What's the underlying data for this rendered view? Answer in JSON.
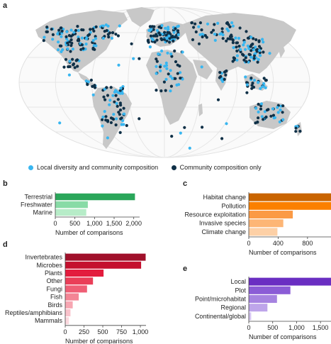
{
  "panels": {
    "a": "a",
    "b": "b",
    "c": "c",
    "d": "d",
    "e": "e"
  },
  "legend": {
    "local": {
      "label": "Local diversity and community composition",
      "color": "#38b6f0"
    },
    "community": {
      "label": "Community composition only",
      "color": "#0f3047"
    }
  },
  "map": {
    "land_color": "#c8c8c8",
    "graticule_color": "#e6e6e6"
  },
  "chart_data": [
    {
      "id": "b",
      "type": "bar",
      "orientation": "horizontal",
      "categories": [
        "Terrestrial",
        "Freshwater",
        "Marine"
      ],
      "values": [
        2030,
        830,
        790
      ],
      "colors": [
        "#2aa65a",
        "#88dba6",
        "#b7ecc8"
      ],
      "xlabel": "Number of comparisons",
      "xticks": [
        0,
        500,
        1000,
        1500,
        2000
      ],
      "xtick_labels": [
        "0",
        "500",
        "1,000",
        "1,500",
        "2,000"
      ],
      "xlim": [
        0,
        2150
      ]
    },
    {
      "id": "c",
      "type": "bar",
      "orientation": "horizontal",
      "categories": [
        "Habitat change",
        "Pollution",
        "Resource exploitation",
        "Invasive species",
        "Climate change"
      ],
      "values": [
        1120,
        1120,
        600,
        470,
        390
      ],
      "colors": [
        "#c96400",
        "#fb8000",
        "#fb9a45",
        "#fdb676",
        "#fdd0a6"
      ],
      "xlabel": "Number of comparisons",
      "xticks": [
        0,
        400,
        800
      ],
      "xtick_labels": [
        "0",
        "400",
        "800"
      ],
      "xlim": [
        0,
        1120
      ]
    },
    {
      "id": "d",
      "type": "bar",
      "orientation": "horizontal",
      "categories": [
        "Invertebrates",
        "Microbes",
        "Plants",
        "Other",
        "Fungi",
        "Fish",
        "Birds",
        "Reptiles/amphibians",
        "Mammals"
      ],
      "values": [
        1070,
        1010,
        510,
        370,
        290,
        180,
        100,
        70,
        50
      ],
      "colors": [
        "#a0102a",
        "#c4102e",
        "#e31c3d",
        "#ea3e58",
        "#ef5e75",
        "#f38595",
        "#f7a6b2",
        "#f9c2cb",
        "#fbd8de"
      ],
      "xlabel": "Number of comparisons",
      "xticks": [
        0,
        250,
        500,
        750,
        1000
      ],
      "xtick_labels": [
        "0",
        "250",
        "500",
        "750",
        "1,000"
      ],
      "xlim": [
        0,
        1075
      ]
    },
    {
      "id": "e",
      "type": "bar",
      "orientation": "horizontal",
      "categories": [
        "Local",
        "Plot",
        "Point/microhabitat",
        "Regional",
        "Continental/global"
      ],
      "values": [
        1720,
        870,
        590,
        390,
        50
      ],
      "colors": [
        "#6a2ec2",
        "#8b5cd6",
        "#a683e0",
        "#bea5ea",
        "#d6c6f2"
      ],
      "xlabel": "Number of comparisons",
      "xticks": [
        0,
        500,
        1000,
        1500
      ],
      "xtick_labels": [
        "0",
        "500",
        "1,000",
        "1,500"
      ],
      "xlim": [
        0,
        1720
      ]
    }
  ]
}
